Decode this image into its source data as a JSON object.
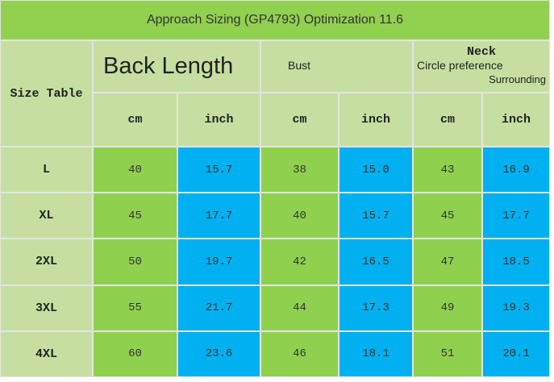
{
  "title": "Approach Sizing (GP4793) Optimization 11.6",
  "table": {
    "corner": "Size Table",
    "groups": [
      "Back Length",
      "Bust"
    ],
    "neck": {
      "title": "Neck",
      "line1": "Circle preference",
      "line2": "Surrounding"
    },
    "units": [
      "cm",
      "inch",
      "cm",
      "inch",
      "cm",
      "inch"
    ],
    "rows": [
      [
        "L",
        "40",
        "15.7",
        "38",
        "15.0",
        "43",
        "16.9"
      ],
      [
        "XL",
        "45",
        "17.7",
        "40",
        "15.7",
        "45",
        "17.7"
      ],
      [
        "2XL",
        "50",
        "19.7",
        "42",
        "16.5",
        "47",
        "18.5"
      ],
      [
        "3XL",
        "55",
        "21.7",
        "44",
        "17.3",
        "49",
        "19.3"
      ],
      [
        "4XL",
        "60",
        "23.6",
        "46",
        "18.1",
        "51",
        "20.1"
      ]
    ]
  }
}
